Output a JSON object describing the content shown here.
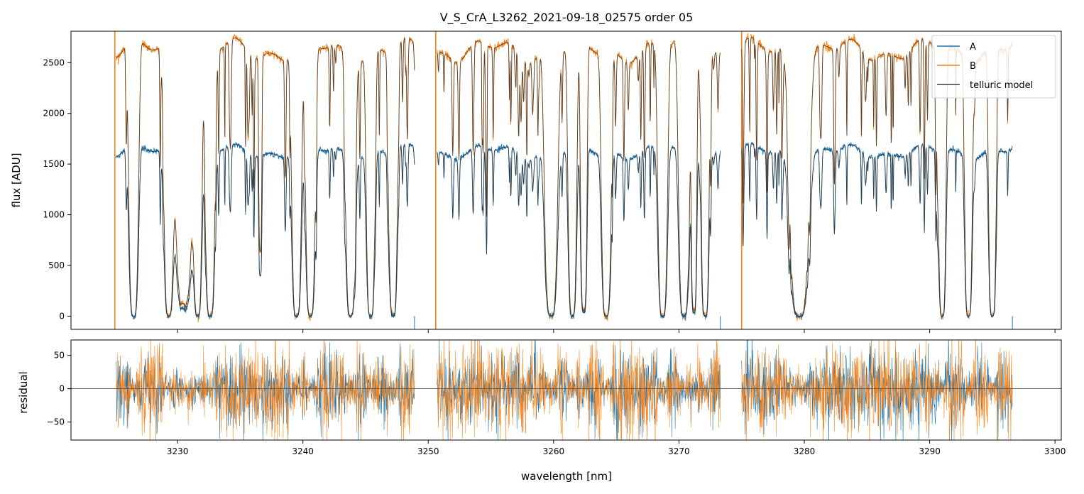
{
  "chart_data": [
    {
      "type": "line",
      "panel": "top",
      "title": "V_S_CrA_L3262_2021-09-18_02575  order 05",
      "xlabel": "",
      "ylabel": "flux [ADU]",
      "xlim": [
        3221.5,
        3300.5
      ],
      "ylim": [
        -130,
        2810
      ],
      "yticks": [
        0,
        500,
        1000,
        1500,
        2000,
        2500
      ],
      "ytick_labels": [
        "0",
        "500",
        "1000",
        "1500",
        "2000",
        "2500"
      ],
      "xticks": [
        3230,
        3240,
        3250,
        3260,
        3270,
        3280,
        3290,
        3300
      ],
      "legend": {
        "placement": "top-right",
        "entries": [
          "A",
          "B",
          "telluric model"
        ]
      },
      "segments": [
        [
          3225.1,
          3248.9
        ],
        [
          3250.7,
          3273.3
        ],
        [
          3275.0,
          3296.6
        ]
      ],
      "vertical_lines_B": [
        3225.0,
        3250.6,
        3275.0
      ],
      "series": [
        {
          "name": "A",
          "color": "#1f77b4",
          "continuum": 1620
        },
        {
          "name": "B",
          "color": "#ff7f0e",
          "continuum": 2620
        },
        {
          "name": "telluric model",
          "color": "#3b3b3b"
        }
      ],
      "absorption_bands": [
        {
          "center": 3226.5,
          "width": 0.45,
          "depth": 1.0
        },
        {
          "center": 3229.3,
          "width": 0.45,
          "depth": 1.0
        },
        {
          "center": 3230.5,
          "width": 0.8,
          "depth": 0.95
        },
        {
          "center": 3231.6,
          "width": 0.4,
          "depth": 1.0
        },
        {
          "center": 3232.6,
          "width": 0.45,
          "depth": 1.0
        },
        {
          "center": 3236.6,
          "width": 0.15,
          "depth": 0.75
        },
        {
          "center": 3239.5,
          "width": 0.45,
          "depth": 1.0
        },
        {
          "center": 3240.6,
          "width": 0.45,
          "depth": 1.0
        },
        {
          "center": 3243.8,
          "width": 0.45,
          "depth": 1.0
        },
        {
          "center": 3245.4,
          "width": 0.4,
          "depth": 1.0
        },
        {
          "center": 3247.2,
          "width": 0.4,
          "depth": 1.0
        },
        {
          "center": 3259.8,
          "width": 0.6,
          "depth": 1.0
        },
        {
          "center": 3261.5,
          "width": 0.4,
          "depth": 1.0
        },
        {
          "center": 3262.4,
          "width": 0.3,
          "depth": 0.98
        },
        {
          "center": 3264.2,
          "width": 0.45,
          "depth": 1.0
        },
        {
          "center": 3268.7,
          "width": 0.45,
          "depth": 1.0
        },
        {
          "center": 3270.4,
          "width": 0.5,
          "depth": 1.0
        },
        {
          "center": 3271.2,
          "width": 0.25,
          "depth": 0.98
        },
        {
          "center": 3272.1,
          "width": 0.35,
          "depth": 1.0
        },
        {
          "center": 3279.6,
          "width": 0.9,
          "depth": 1.0
        },
        {
          "center": 3291.0,
          "width": 0.35,
          "depth": 1.0
        },
        {
          "center": 3293.1,
          "width": 0.35,
          "depth": 1.0
        },
        {
          "center": 3295.0,
          "width": 0.35,
          "depth": 1.0
        }
      ]
    },
    {
      "type": "line",
      "panel": "bottom",
      "xlabel": "wavelength [nm]",
      "ylabel": "residual",
      "xlim": [
        3221.5,
        3300.5
      ],
      "ylim": [
        -77,
        73
      ],
      "yticks": [
        -50,
        0,
        50
      ],
      "ytick_labels": [
        "−50",
        "0",
        "50"
      ],
      "xticks": [
        3230,
        3240,
        3250,
        3260,
        3270,
        3280,
        3290,
        3300
      ],
      "xtick_labels": [
        "3230",
        "3240",
        "3250",
        "3260",
        "3270",
        "3280",
        "3290",
        "3300"
      ],
      "zero_line": 0,
      "series": [
        {
          "name": "A",
          "color": "#1f77b4",
          "noise_sigma": 20
        },
        {
          "name": "B",
          "color": "#ff7f0e",
          "noise_sigma": 24
        }
      ]
    }
  ]
}
